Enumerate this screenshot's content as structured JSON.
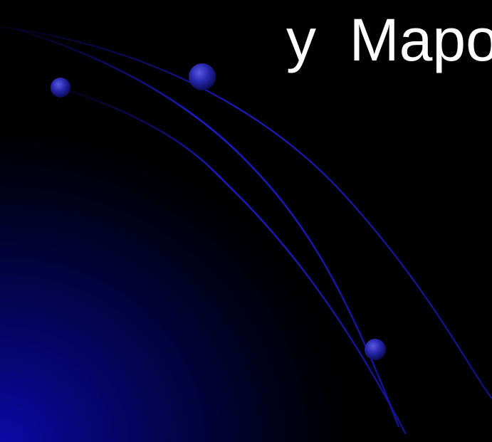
{
  "slide": {
    "title": "y  Mapo"
  },
  "theme": {
    "background": "#000000",
    "glow": "#0a0aa8",
    "arc_color": "#1a1acc",
    "node_color": "#2a2ab8",
    "text_color": "#ffffff"
  }
}
